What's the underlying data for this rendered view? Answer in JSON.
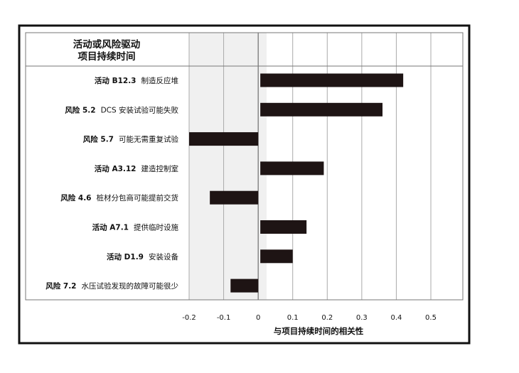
{
  "chart_data": {
    "type": "bar",
    "orientation": "horizontal",
    "title_lines": [
      "活动或风险驱动",
      "项目持续时间"
    ],
    "xlabel": "与项目持续时间的相关性",
    "ylabel": "",
    "xlim": [
      -0.2,
      0.5
    ],
    "x_ticks": [
      "-0.2",
      "-0.1",
      "0",
      "0.1",
      "0.2",
      "0.3",
      "0.4",
      "0.5"
    ],
    "x_tick_values": [
      -0.2,
      -0.1,
      0,
      0.1,
      0.2,
      0.3,
      0.4,
      0.5
    ],
    "grid": true,
    "bar_color": "#1e1414",
    "categories": [
      {
        "prefix": "活动 B12.3",
        "text": "制造反应堆",
        "value": 0.42
      },
      {
        "prefix": "风险 5.2",
        "text": "DCS 安装试验可能失败",
        "value": 0.36
      },
      {
        "prefix": "风险 5.7",
        "text": "可能无需重复试验",
        "value": -0.2
      },
      {
        "prefix": "活动 A3.12",
        "text": "建造控制室",
        "value": 0.19
      },
      {
        "prefix": "风险 4.6",
        "text": "桩材分包商可能提前交货",
        "value": -0.14
      },
      {
        "prefix": "活动 A7.1",
        "text": "提供临时设施",
        "value": 0.14
      },
      {
        "prefix": "活动 D1.9",
        "text": "安装设备",
        "value": 0.1
      },
      {
        "prefix": "风险 7.2",
        "text": "水压试验发现的故障可能很少",
        "value": -0.08
      }
    ]
  }
}
